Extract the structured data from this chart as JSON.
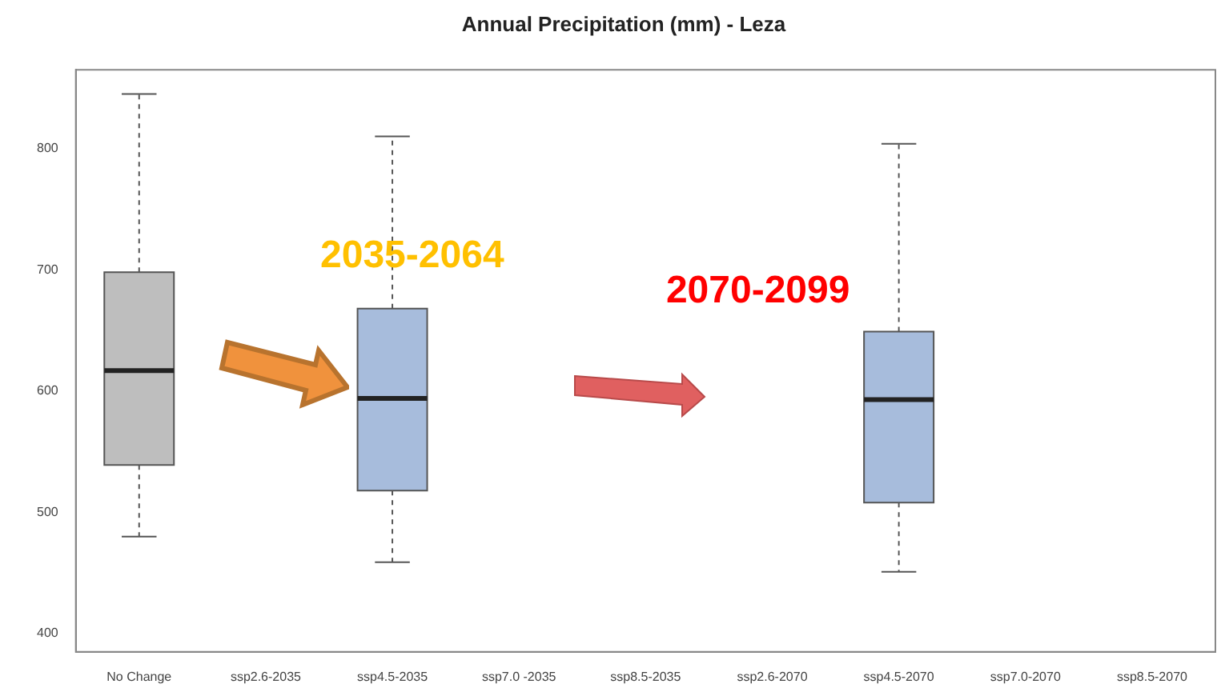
{
  "chart_data": {
    "type": "box",
    "title": "Annual Precipitation (mm) - Leza",
    "categories": [
      "No Change",
      "ssp2.6-2035",
      "ssp4.5-2035",
      "ssp7.0 -2035",
      "ssp8.5-2035",
      "ssp2.6-2070",
      "ssp4.5-2070",
      "ssp7.0-2070",
      "ssp8.5-2070"
    ],
    "boxes": [
      {
        "low": 480,
        "q1": 539,
        "median": 617,
        "q3": 698,
        "high": 845
      },
      null,
      {
        "low": 459,
        "q1": 518,
        "median": 594,
        "q3": 668,
        "high": 810
      },
      null,
      null,
      null,
      {
        "low": 451,
        "q1": 508,
        "median": 593,
        "q3": 649,
        "high": 804
      },
      null,
      null
    ],
    "colors": [
      "#bebebe",
      null,
      "#a7bcdc",
      null,
      null,
      null,
      "#a7bcdc",
      null,
      null
    ],
    "ylim": [
      385,
      865
    ],
    "yticks": [
      400,
      500,
      600,
      700,
      800
    ],
    "annotations": [
      "2035-2064",
      "2070-2099"
    ]
  }
}
